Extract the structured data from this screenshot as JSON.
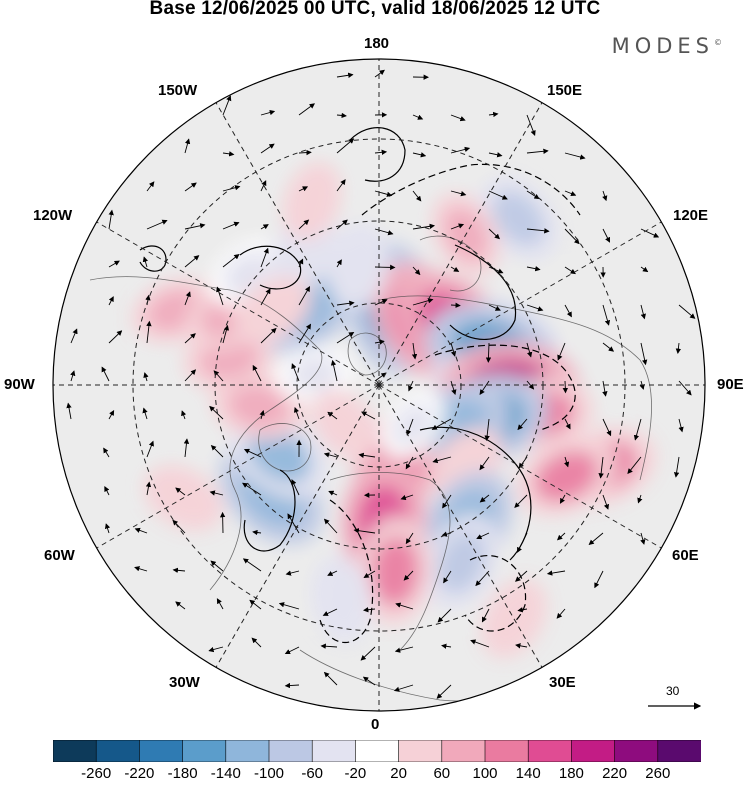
{
  "title": "Base 12/06/2025 00 UTC, valid 18/06/2025 12 UTC",
  "logo": "MODES",
  "logo_mark": "©",
  "longitude_labels": {
    "top": "180",
    "bottom": "0",
    "left": "90W",
    "right": "90E",
    "upper_left": "150W",
    "mid_upper_left": "120W",
    "upper_right": "150E",
    "mid_upper_right": "120E",
    "lower_left": "30W",
    "mid_lower_left": "60W",
    "lower_right": "30E",
    "mid_lower_right": "60E"
  },
  "reference_vector": {
    "label": "30"
  },
  "colorbar": {
    "colors": [
      "#0d3a5a",
      "#15588a",
      "#2f7bb3",
      "#5b9dcb",
      "#8fb6db",
      "#bcc8e4",
      "#e3e3f1",
      "#ffffff",
      "#f6d1d7",
      "#f1a9bb",
      "#ea7ba0",
      "#e04c93",
      "#c31c85",
      "#8e0c7e",
      "#5a0a6e"
    ],
    "tick_labels": [
      "-260",
      "-220",
      "-180",
      "-140",
      "-100",
      "-60",
      "-20",
      "20",
      "60",
      "100",
      "140",
      "180",
      "220",
      "260"
    ]
  },
  "anomaly_cells": [
    {
      "lon": 170,
      "lat": 72,
      "value": -170
    },
    {
      "lon": 145,
      "lat": 72,
      "value": 160
    },
    {
      "lon": 130,
      "lat": 68,
      "value": 150
    },
    {
      "lon": 140,
      "lat": 40,
      "value": -80
    },
    {
      "lon": 150,
      "lat": 50,
      "value": 60
    },
    {
      "lon": 110,
      "lat": 58,
      "value": -90
    },
    {
      "lon": 107,
      "lat": 63,
      "value": -170
    },
    {
      "lon": 92,
      "lat": 68,
      "value": -60
    },
    {
      "lon": 88,
      "lat": 60,
      "value": 190
    },
    {
      "lon": 80,
      "lat": 52,
      "value": 100
    },
    {
      "lon": 70,
      "lat": 35,
      "value": 110
    },
    {
      "lon": 64,
      "lat": 42,
      "value": 100
    },
    {
      "lon": 72,
      "lat": 64,
      "value": -150
    },
    {
      "lon": 60,
      "lat": 70,
      "value": -130
    },
    {
      "lon": 48,
      "lat": 63,
      "value": 50
    },
    {
      "lon": 32,
      "lat": 52,
      "value": -130
    },
    {
      "lon": 25,
      "lat": 45,
      "value": -90
    },
    {
      "lon": 30,
      "lat": 28,
      "value": 50
    },
    {
      "lon": 10,
      "lat": 70,
      "value": 120
    },
    {
      "lon": 2,
      "lat": 58,
      "value": 150
    },
    {
      "lon": 5,
      "lat": 47,
      "value": 110
    },
    {
      "lon": -10,
      "lat": 40,
      "value": -60
    },
    {
      "lon": -45,
      "lat": 55,
      "value": -140
    },
    {
      "lon": -55,
      "lat": 62,
      "value": -110
    },
    {
      "lon": -60,
      "lat": 38,
      "value": 50
    },
    {
      "lon": -80,
      "lat": 62,
      "value": 80
    },
    {
      "lon": -100,
      "lat": 55,
      "value": 70
    },
    {
      "lon": -110,
      "lat": 40,
      "value": 60
    },
    {
      "lon": -115,
      "lat": 52,
      "value": 70
    },
    {
      "lon": -130,
      "lat": 50,
      "value": -40
    },
    {
      "lon": -140,
      "lat": 65,
      "value": -140
    },
    {
      "lon": -150,
      "lat": 55,
      "value": -60
    },
    {
      "lon": -125,
      "lat": 60,
      "value": 50
    },
    {
      "lon": -160,
      "lat": 45,
      "value": 40
    },
    {
      "lon": -170,
      "lat": 62,
      "value": -60
    },
    {
      "lon": -100,
      "lat": 75,
      "value": -40
    },
    {
      "lon": -40,
      "lat": 78,
      "value": 40
    },
    {
      "lon": 40,
      "lat": 78,
      "value": -30
    }
  ]
}
